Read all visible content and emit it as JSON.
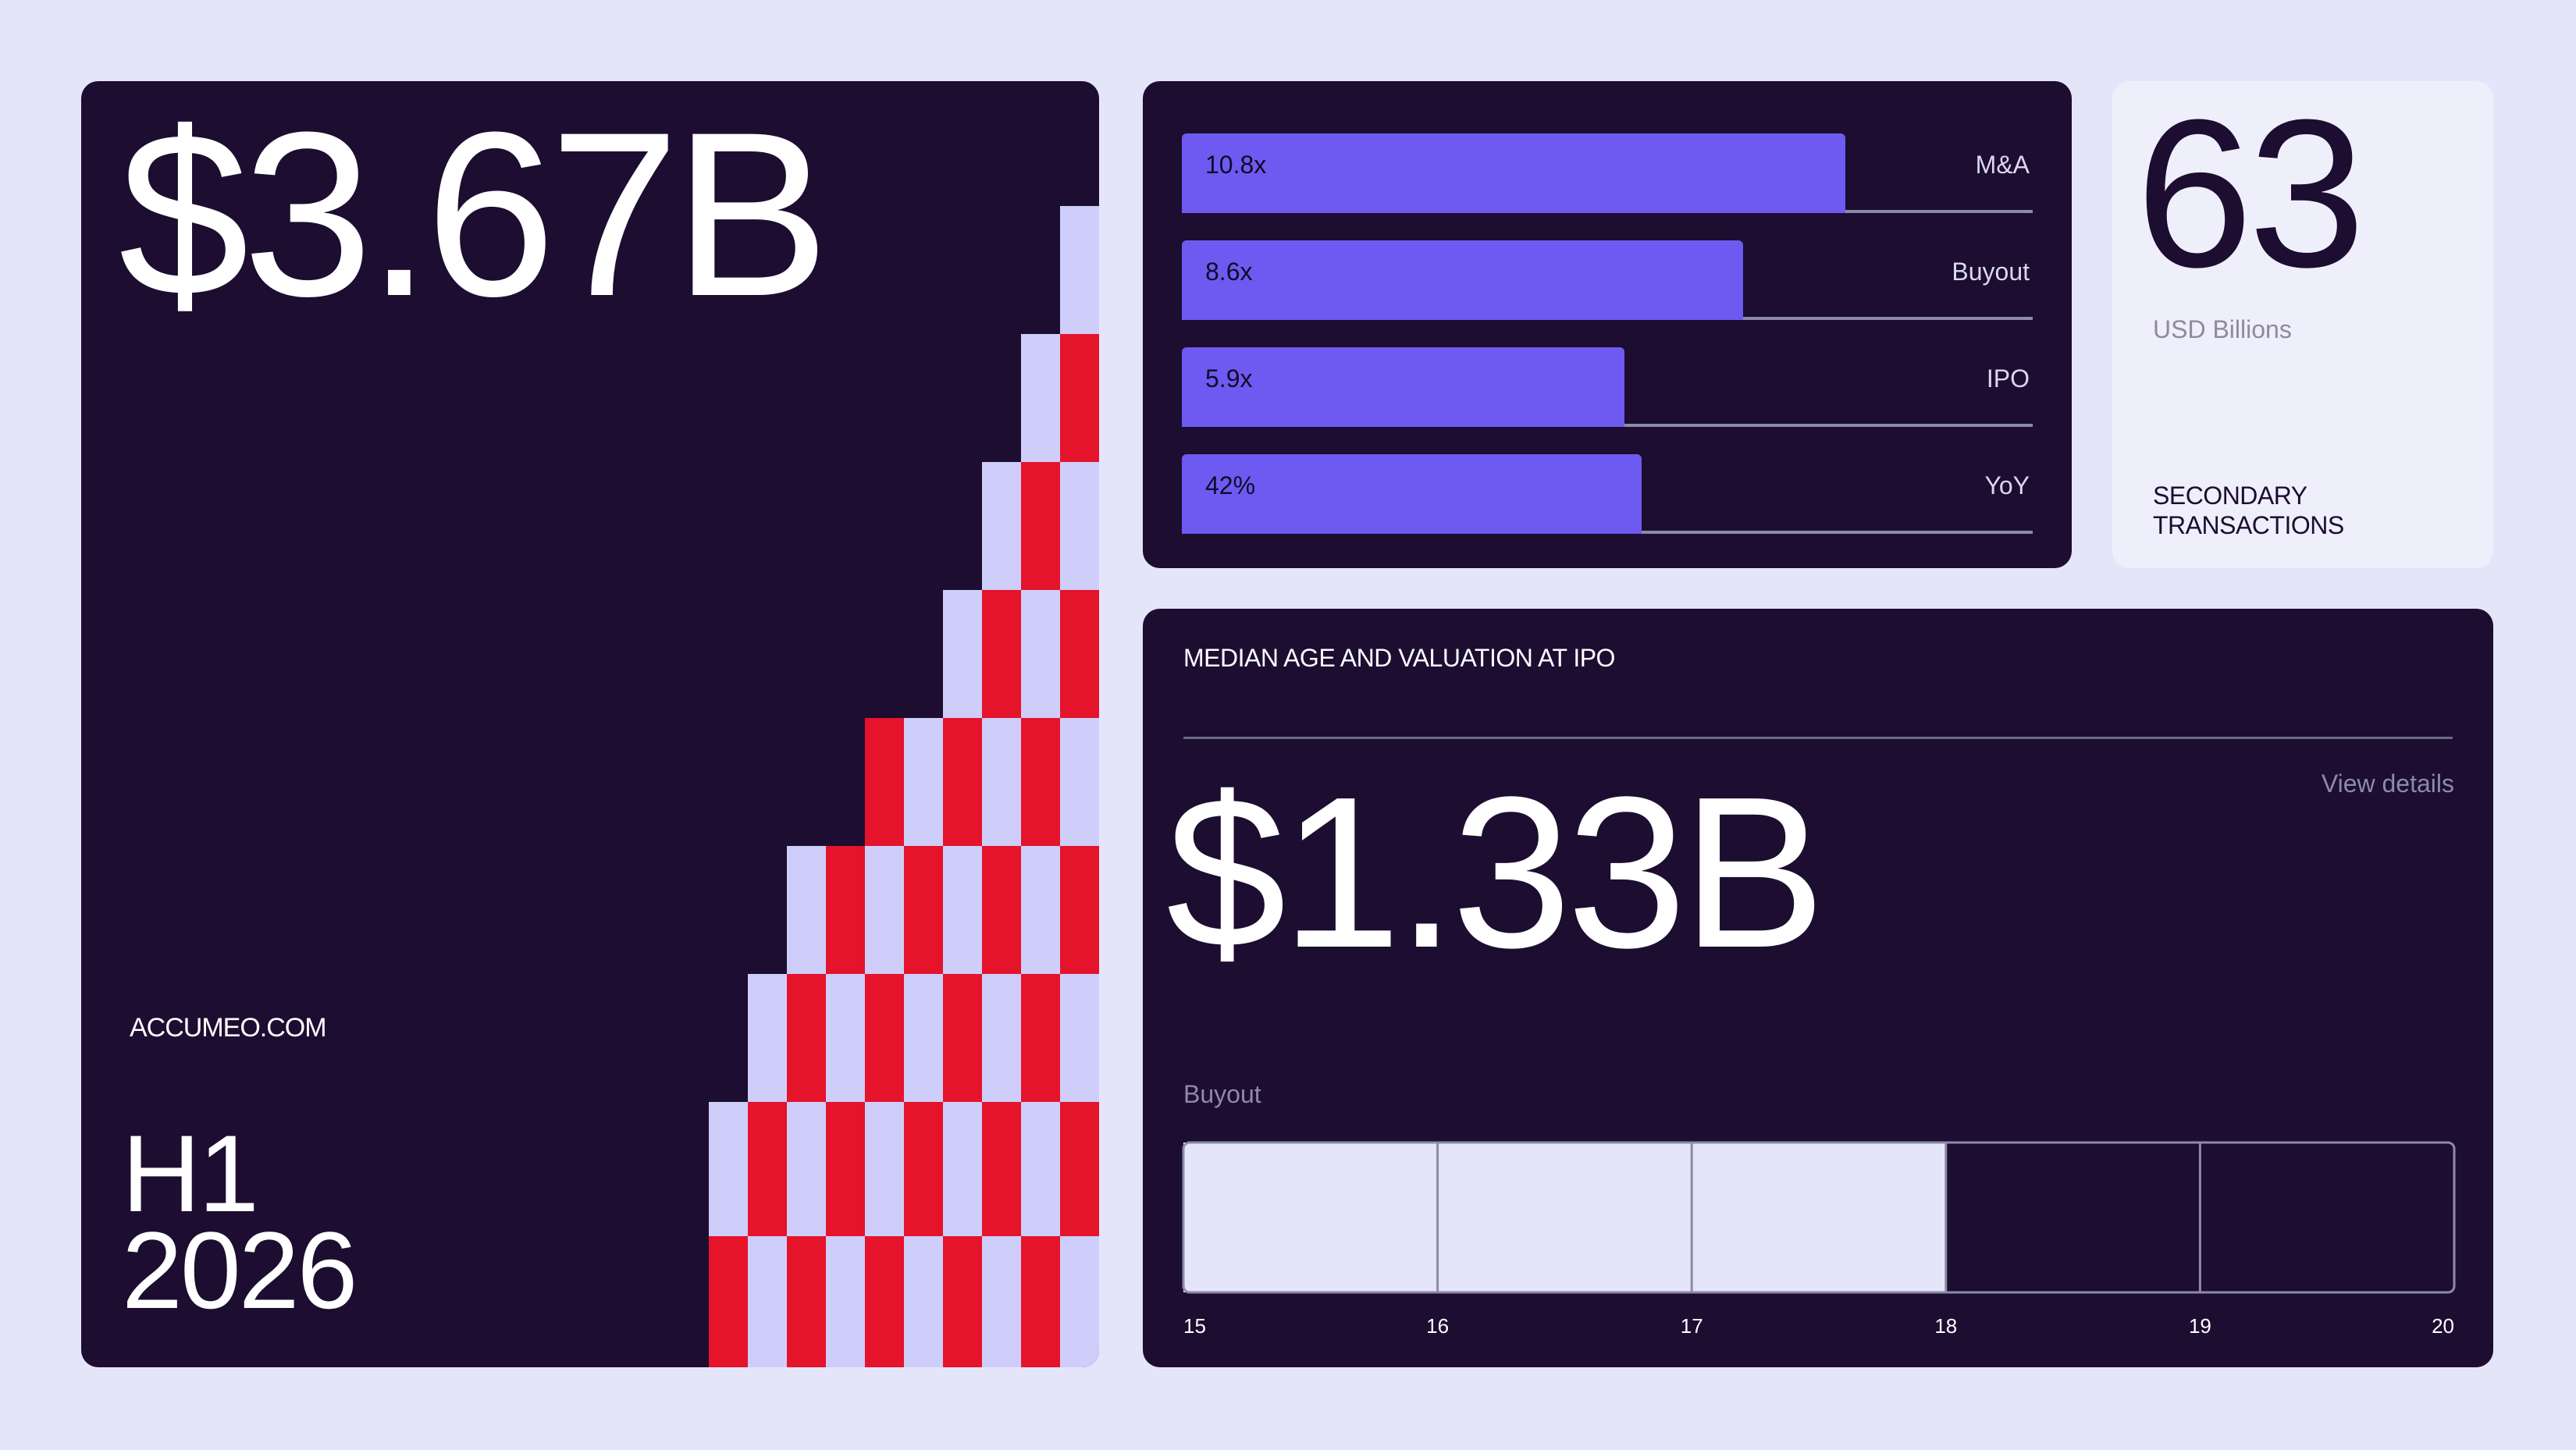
{
  "hero": {
    "value": "$3.67B",
    "site": "ACCUMEO.COM",
    "period_line1": "H1",
    "period_line2": "2026",
    "colors": {
      "light": "#cfcdfa",
      "red": "#e5142b"
    }
  },
  "stat": {
    "number": "63",
    "unit": "USD Billions",
    "title": "SECONDARY TRANSACTIONS"
  },
  "ipo": {
    "title": "MEDIAN AGE AND VALUATION AT IPO",
    "link": "View details",
    "value": "$1.33B",
    "series_label": "Buyout"
  },
  "chart_data": [
    {
      "type": "bar",
      "orientation": "horizontal",
      "categories": [
        "M&A",
        "Buyout",
        "IPO",
        "YoY"
      ],
      "values": [
        10.8,
        8.6,
        5.9,
        42
      ],
      "value_labels": [
        "10.8x",
        "8.6x",
        "5.9x",
        "42%"
      ],
      "fractions": [
        0.78,
        0.66,
        0.52,
        0.54
      ],
      "color": "#6e5af0"
    },
    {
      "type": "bar",
      "orientation": "range",
      "series": [
        {
          "name": "Buyout",
          "range": [
            15,
            18
          ]
        }
      ],
      "x_ticks": [
        15,
        16,
        17,
        18,
        19,
        20
      ],
      "xlim": [
        15,
        20
      ],
      "fill_color": "#e5e5fa"
    }
  ]
}
